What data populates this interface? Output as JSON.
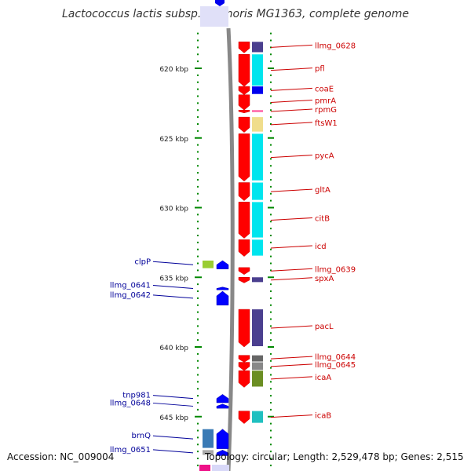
{
  "title": "Lactococcus lactis subsp. cremoris MG1363, complete genome",
  "footer": {
    "accession": "Accession: NC_009004",
    "summary": "Topology: circular; Length: 2,529,478 bp; Genes: 2,515"
  },
  "axis": {
    "ticks": [
      {
        "label": "620 kbp",
        "kbp": 620
      },
      {
        "label": "625 kbp",
        "kbp": 625
      },
      {
        "label": "630 kbp",
        "kbp": 630
      },
      {
        "label": "635 kbp",
        "kbp": 635
      },
      {
        "label": "640 kbp",
        "kbp": 640
      },
      {
        "label": "645 kbp",
        "kbp": 645
      }
    ]
  },
  "colors": {
    "forward_cds": "#ff0000",
    "reverse_cds": "#0000ff",
    "forward_label": "#cc0000",
    "reverse_label": "#000099",
    "backbone": "#888888",
    "tick": "#008800"
  },
  "genes_forward": [
    {
      "name": "llmg_0628",
      "start": 618.1,
      "end": 618.9,
      "cog": "#4b3f8f"
    },
    {
      "name": "pfl",
      "start": 619.0,
      "end": 621.3,
      "cog": "#00e5ee"
    },
    {
      "name": "coaE",
      "start": 621.3,
      "end": 621.9,
      "cog": "#0000ee"
    },
    {
      "name": "pmrA",
      "start": 621.9,
      "end": 623.0,
      "cog": ""
    },
    {
      "name": "rpmG",
      "start": 623.0,
      "end": 623.2,
      "cog": "#ff66aa"
    },
    {
      "name": "ftsW1",
      "start": 623.5,
      "end": 624.6,
      "cog": "#f0dd8c"
    },
    {
      "name": "pycA",
      "start": 624.7,
      "end": 628.1,
      "cog": "#00e5ee"
    },
    {
      "name": "gltA",
      "start": 628.2,
      "end": 629.5,
      "cog": "#00e5ee"
    },
    {
      "name": "citB",
      "start": 629.6,
      "end": 632.2,
      "cog": "#00e5ee"
    },
    {
      "name": "icd",
      "start": 632.3,
      "end": 633.5,
      "cog": "#00e5ee"
    },
    {
      "name": "llmg_0639",
      "start": 634.3,
      "end": 634.8,
      "cog": ""
    },
    {
      "name": "spxA",
      "start": 635.0,
      "end": 635.4,
      "cog": "#4b3f8f"
    },
    {
      "name": "pacL",
      "start": 637.3,
      "end": 640.0,
      "cog": "#4b3f8f"
    },
    {
      "name": "llmg_0644",
      "start": 640.6,
      "end": 641.1,
      "cog": "#666666"
    },
    {
      "name": "llmg_0645",
      "start": 641.1,
      "end": 641.7,
      "cog": "#888888"
    },
    {
      "name": "icaA",
      "start": 641.7,
      "end": 642.9,
      "cog": "#6b8e23"
    },
    {
      "name": "icaB",
      "start": 644.6,
      "end": 645.5,
      "cog": "#20c0c0"
    }
  ],
  "genes_reverse": [
    {
      "name": "clpP",
      "start": 633.8,
      "end": 634.4,
      "cog": "#9acd32"
    },
    {
      "name": "llmg_0641",
      "start": 635.7,
      "end": 635.9,
      "cog": ""
    },
    {
      "name": "llmg_0642",
      "start": 636.0,
      "end": 637.0,
      "cog": ""
    },
    {
      "name": "tnp981",
      "start": 643.4,
      "end": 644.0,
      "cog": ""
    },
    {
      "name": "llmg_0648",
      "start": 644.1,
      "end": 644.4,
      "cog": ""
    },
    {
      "name": "brnQ",
      "start": 645.9,
      "end": 647.3,
      "cog": "#3a7ab5"
    },
    {
      "name": "llmg_0651",
      "start": 647.4,
      "end": 647.8,
      "cog": "#aaaaaa"
    }
  ]
}
